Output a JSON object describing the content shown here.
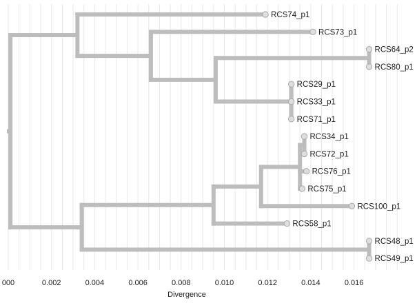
{
  "axis": {
    "title": "Divergence",
    "ticks": [
      {
        "value": 0.0,
        "label": "000"
      },
      {
        "value": 0.002,
        "label": "0.002"
      },
      {
        "value": 0.004,
        "label": "0.004"
      },
      {
        "value": 0.006,
        "label": "0.006"
      },
      {
        "value": 0.008,
        "label": "0.008"
      },
      {
        "value": 0.01,
        "label": "0.010"
      },
      {
        "value": 0.012,
        "label": "0.012"
      },
      {
        "value": 0.014,
        "label": "0.014"
      },
      {
        "value": 0.016,
        "label": "0.016"
      }
    ],
    "range": [
      0,
      0.0183
    ]
  },
  "tree": {
    "d": 0.0001,
    "children": [
      {
        "d": 0.0032,
        "children": [
          {
            "name": "RCS74_p1",
            "d": 0.0119
          },
          {
            "d": 0.0066,
            "children": [
              {
                "name": "RCS73_p1",
                "d": 0.0141
              },
              {
                "d": 0.0096,
                "children": [
                  {
                    "d": 0.0167,
                    "children": [
                      {
                        "name": "RCS64_p2",
                        "d": 0.0167
                      },
                      {
                        "name": "RCS80_p1",
                        "d": 0.0167
                      }
                    ]
                  },
                  {
                    "d": 0.0131,
                    "children": [
                      {
                        "name": "RCS29_p1",
                        "d": 0.0131
                      },
                      {
                        "name": "RCS33_p1",
                        "d": 0.0131
                      },
                      {
                        "name": "RCS71_p1",
                        "d": 0.0131
                      }
                    ]
                  }
                ]
              }
            ]
          }
        ]
      },
      {
        "d": 0.0034,
        "children": [
          {
            "d": 0.0095,
            "children": [
              {
                "d": 0.0117,
                "children": [
                  {
                    "d": 0.0135,
                    "children": [
                      {
                        "d": 0.0137,
                        "children": [
                          {
                            "name": "RCS34_p1",
                            "d": 0.0137
                          },
                          {
                            "name": "RCS72_p1",
                            "d": 0.0137
                          }
                        ]
                      },
                      {
                        "name": "RCS76_p1",
                        "d": 0.0138
                      },
                      {
                        "name": "RCS75_p1",
                        "d": 0.0136
                      }
                    ]
                  },
                  {
                    "name": "RCS100_p1",
                    "d": 0.0159
                  }
                ]
              },
              {
                "name": "RCS58_p1",
                "d": 0.0129
              }
            ]
          },
          {
            "d": 0.0167,
            "children": [
              {
                "name": "RCS48_p1",
                "d": 0.0167
              },
              {
                "name": "RCS49_p1",
                "d": 0.0167
              }
            ]
          }
        ]
      }
    ]
  },
  "colors": {
    "branch": "#bdbdbd",
    "node_fill": "#dedede",
    "node_stroke": "#a9a9a9",
    "grid": "#e8e8e8",
    "text": "#222222"
  }
}
